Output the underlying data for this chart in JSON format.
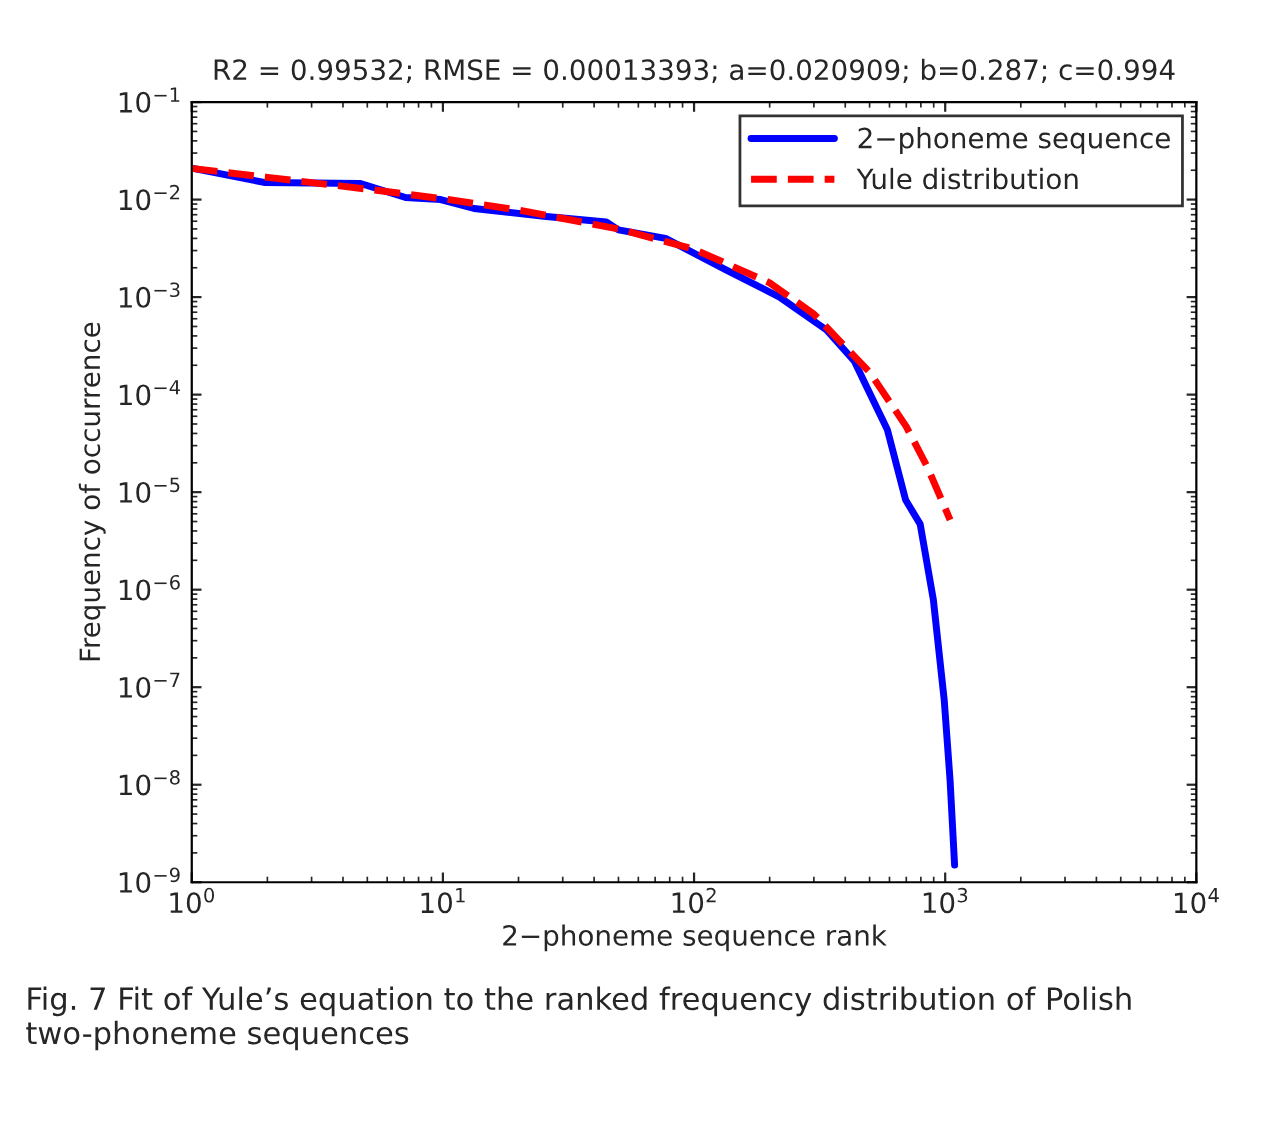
{
  "chart_data": {
    "type": "line",
    "title": "R2 = 0.99532; RMSE = 0.00013393; a=0.020909; b=0.287; c=0.994",
    "xlabel": "2−phoneme sequence rank",
    "ylabel": "Frequency of occurrence",
    "log": "xy",
    "xlim": [
      1,
      10000
    ],
    "ylim": [
      1e-09,
      0.1
    ],
    "xticks": [
      {
        "value": 1,
        "label": "10$^{0}$"
      },
      {
        "value": 10,
        "label": "10$^{1}$"
      },
      {
        "value": 100,
        "label": "10$^{2}$"
      },
      {
        "value": 1000,
        "label": "10$^{3}$"
      },
      {
        "value": 10000,
        "label": "10$^{4}$"
      }
    ],
    "yticks": [
      {
        "value": 1e-09,
        "label": "10$^{−9}$"
      },
      {
        "value": 1e-08,
        "label": "10$^{−8}$"
      },
      {
        "value": 1e-07,
        "label": "10$^{−7}$"
      },
      {
        "value": 1e-06,
        "label": "10$^{−6}$"
      },
      {
        "value": 1e-05,
        "label": "10$^{−5}$"
      },
      {
        "value": 0.0001,
        "label": "10$^{−4}$"
      },
      {
        "value": 0.001,
        "label": "10$^{−3}$"
      },
      {
        "value": 0.01,
        "label": "10$^{−2}$"
      },
      {
        "value": 0.1,
        "label": "10$^{−1}$"
      }
    ],
    "grid": false,
    "legend": "top right",
    "series": [
      {
        "name": "2−phoneme sequence",
        "color": "#0000ff",
        "line_style": "solid",
        "x": [
          1,
          1.94,
          4.7,
          7.1,
          9.8,
          13.3,
          25.8,
          44.7,
          50,
          77,
          134,
          219,
          337,
          435,
          487,
          588,
          696,
          795,
          897,
          991,
          1046,
          1090
        ],
        "values": [
          0.021,
          0.015,
          0.0146,
          0.0105,
          0.01,
          0.0081,
          0.0067,
          0.0059,
          0.0049,
          0.004,
          0.0019,
          0.001,
          0.00046,
          0.00022,
          0.00012,
          4.4e-05,
          8.3e-06,
          4.7e-06,
          7.9e-07,
          7.4e-08,
          1.1e-08,
          1.5e-09
        ]
      },
      {
        "name": "Yule distribution",
        "color": "#ff0000",
        "line_style": "dashed",
        "x": [
          1,
          2,
          5,
          10,
          20,
          50,
          100,
          200,
          300,
          500,
          700,
          850,
          1046
        ],
        "values": [
          0.0209,
          0.0169,
          0.0128,
          0.0102,
          0.0078,
          0.005,
          0.0031,
          0.0014,
          0.00067,
          0.00017,
          4.7e-05,
          1.8e-05,
          5.2e-06
        ]
      }
    ],
    "annotations": [
      "Fig. 7 Fit of Yule’s equation to the ranked frequency distribution of Polish two-phoneme sequences"
    ]
  }
}
